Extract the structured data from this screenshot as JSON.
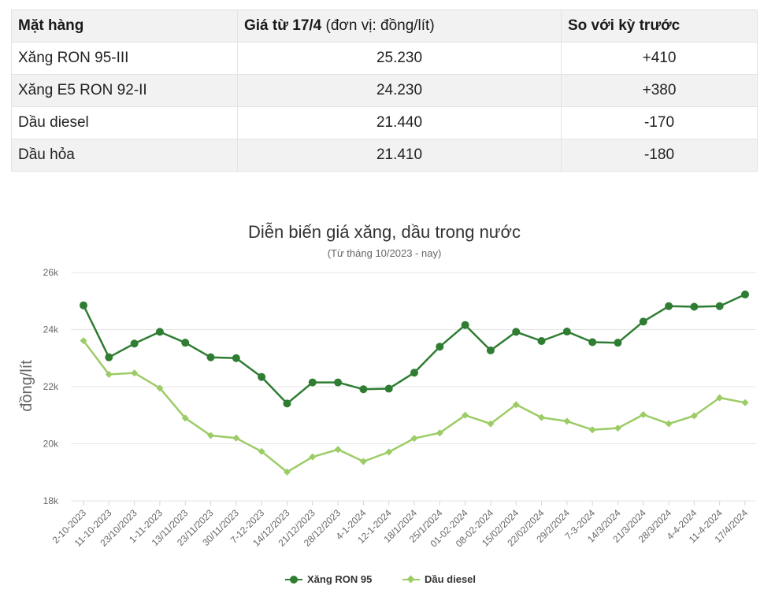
{
  "table": {
    "headers": {
      "item": "Mặt hàng",
      "price_bold": "Giá từ 17/4",
      "price_unit": " (đơn vị: đồng/lít)",
      "change": "So với kỳ trước"
    },
    "rows": [
      {
        "item": "Xăng RON 95-III",
        "price": "25.230",
        "change": "+410"
      },
      {
        "item": "Xăng E5 RON 92-II",
        "price": "24.230",
        "change": "+380"
      },
      {
        "item": "Dầu diesel",
        "price": "21.440",
        "change": "-170"
      },
      {
        "item": "Dầu hỏa",
        "price": "21.410",
        "change": "-180"
      }
    ]
  },
  "chart_data": {
    "type": "line",
    "title": "Diễn biến giá xăng, dầu trong nước",
    "subtitle": "(Từ tháng 10/2023 - nay)",
    "ylabel": "đồng/lít",
    "xlabel": "",
    "ylim": [
      18000,
      26000
    ],
    "yticks": [
      18000,
      20000,
      22000,
      24000,
      26000
    ],
    "ytick_labels": [
      "18k",
      "20k",
      "22k",
      "24k",
      "26k"
    ],
    "grid": true,
    "legend_position": "bottom-center",
    "categories": [
      "2-10-2023",
      "11-10-2023",
      "23/10/2023",
      "1-11-2023",
      "13/11/2023",
      "23/11/2023",
      "30/11/2023",
      "7-12-2023",
      "14/12/2023",
      "21/12/2023",
      "28/12/2023",
      "4-1-2024",
      "12-1-2024",
      "18/1/2024",
      "25/1/2024",
      "01-02-2024",
      "08-02-2024",
      "15/02/2024",
      "22/02/2024",
      "29/2/2024",
      "7-3-2024",
      "14/3/2024",
      "21/3/2024",
      "28/3/2024",
      "4-4-2024",
      "11-4-2024",
      "17/4/2024"
    ],
    "series": [
      {
        "name": "Xăng RON 95",
        "color": "#2e7d32",
        "marker": "circle",
        "values": [
          24850,
          23030,
          23510,
          23920,
          23540,
          23030,
          23000,
          22340,
          21410,
          22150,
          22150,
          21910,
          21930,
          22490,
          23400,
          24160,
          23270,
          23920,
          23600,
          23930,
          23560,
          23540,
          24280,
          24820,
          24800,
          24820,
          25230
        ]
      },
      {
        "name": "Dầu diesel",
        "color": "#9ccc65",
        "marker": "diamond",
        "values": [
          23610,
          22430,
          22480,
          21950,
          20900,
          20290,
          20200,
          19730,
          19010,
          19540,
          19800,
          19380,
          19710,
          20190,
          20380,
          21000,
          20700,
          21370,
          20920,
          20790,
          20490,
          20550,
          21020,
          20700,
          20980,
          21610,
          21440
        ]
      }
    ]
  }
}
